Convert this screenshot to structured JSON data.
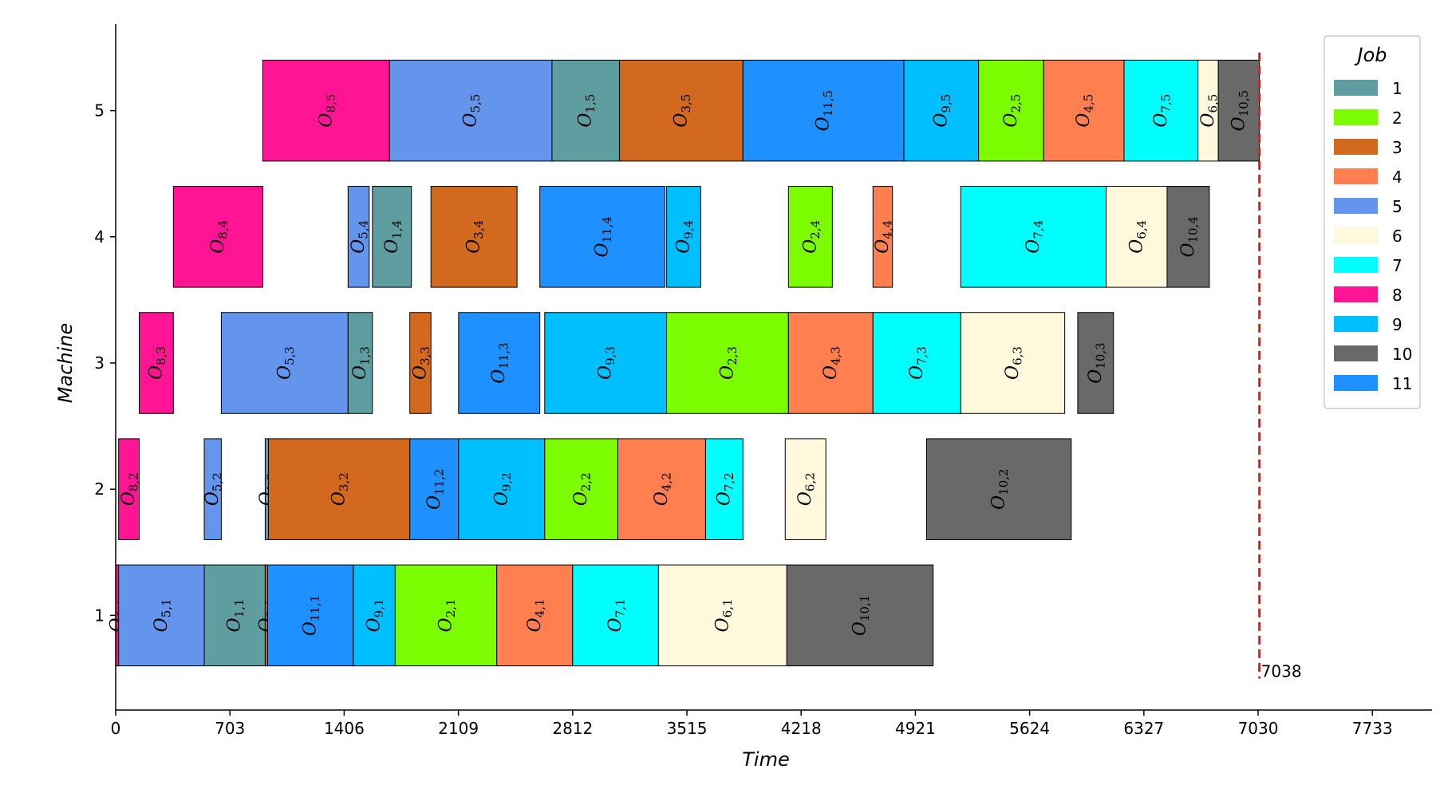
{
  "chart_data": {
    "type": "gantt",
    "xlabel": "Time",
    "ylabel": "Machine",
    "xticks": [
      0,
      703,
      1406,
      2109,
      2812,
      3515,
      4218,
      4921,
      5624,
      6327,
      7030,
      7733
    ],
    "xlim": [
      0,
      8100
    ],
    "yticks": [
      1,
      2,
      3,
      4,
      5
    ],
    "ylim": [
      0.25,
      5.75
    ],
    "makespan": 7038,
    "makespan_label": "7038",
    "makespan_color": "#e41a1a",
    "legend": {
      "title": "Job",
      "placement": "top-right",
      "jobs": [
        {
          "label": "1",
          "color": "#5f9ea0"
        },
        {
          "label": "2",
          "color": "#7cfc00"
        },
        {
          "label": "3",
          "color": "#d2691e"
        },
        {
          "label": "4",
          "color": "#ff7f50"
        },
        {
          "label": "5",
          "color": "#6495ed"
        },
        {
          "label": "6",
          "color": "#fff8dc"
        },
        {
          "label": "7",
          "color": "#00ffff"
        },
        {
          "label": "8",
          "color": "#ff1493"
        },
        {
          "label": "9",
          "color": "#00bfff"
        },
        {
          "label": "10",
          "color": "#696969"
        },
        {
          "label": "11",
          "color": "#1e90ff"
        }
      ]
    },
    "operations": [
      {
        "machine": 1,
        "job": 8,
        "start": 0,
        "end": 18
      },
      {
        "machine": 1,
        "job": 5,
        "start": 18,
        "end": 545
      },
      {
        "machine": 1,
        "job": 1,
        "start": 545,
        "end": 920
      },
      {
        "machine": 1,
        "job": 3,
        "start": 920,
        "end": 935
      },
      {
        "machine": 1,
        "job": 11,
        "start": 935,
        "end": 1462
      },
      {
        "machine": 1,
        "job": 9,
        "start": 1462,
        "end": 1720
      },
      {
        "machine": 1,
        "job": 2,
        "start": 1720,
        "end": 2345
      },
      {
        "machine": 1,
        "job": 4,
        "start": 2345,
        "end": 2812
      },
      {
        "machine": 1,
        "job": 7,
        "start": 2812,
        "end": 3340
      },
      {
        "machine": 1,
        "job": 6,
        "start": 3340,
        "end": 4130
      },
      {
        "machine": 1,
        "job": 10,
        "start": 4130,
        "end": 5030
      },
      {
        "machine": 2,
        "job": 8,
        "start": 18,
        "end": 145
      },
      {
        "machine": 2,
        "job": 5,
        "start": 545,
        "end": 650
      },
      {
        "machine": 2,
        "job": 1,
        "start": 920,
        "end": 940
      },
      {
        "machine": 2,
        "job": 3,
        "start": 940,
        "end": 1810
      },
      {
        "machine": 2,
        "job": 11,
        "start": 1810,
        "end": 2110
      },
      {
        "machine": 2,
        "job": 9,
        "start": 2110,
        "end": 2640
      },
      {
        "machine": 2,
        "job": 2,
        "start": 2640,
        "end": 3090
      },
      {
        "machine": 2,
        "job": 4,
        "start": 3090,
        "end": 3630
      },
      {
        "machine": 2,
        "job": 7,
        "start": 3630,
        "end": 3860
      },
      {
        "machine": 2,
        "job": 6,
        "start": 4120,
        "end": 4370
      },
      {
        "machine": 2,
        "job": 10,
        "start": 4990,
        "end": 5880
      },
      {
        "machine": 3,
        "job": 8,
        "start": 145,
        "end": 355
      },
      {
        "machine": 3,
        "job": 5,
        "start": 650,
        "end": 1430
      },
      {
        "machine": 3,
        "job": 1,
        "start": 1430,
        "end": 1580
      },
      {
        "machine": 3,
        "job": 3,
        "start": 1810,
        "end": 1940
      },
      {
        "machine": 3,
        "job": 11,
        "start": 2110,
        "end": 2610
      },
      {
        "machine": 3,
        "job": 9,
        "start": 2640,
        "end": 3390
      },
      {
        "machine": 3,
        "job": 2,
        "start": 3390,
        "end": 4140
      },
      {
        "machine": 3,
        "job": 4,
        "start": 4140,
        "end": 4660
      },
      {
        "machine": 3,
        "job": 7,
        "start": 4660,
        "end": 5200
      },
      {
        "machine": 3,
        "job": 6,
        "start": 5200,
        "end": 5840
      },
      {
        "machine": 3,
        "job": 10,
        "start": 5920,
        "end": 6140
      },
      {
        "machine": 4,
        "job": 8,
        "start": 355,
        "end": 905
      },
      {
        "machine": 4,
        "job": 5,
        "start": 1430,
        "end": 1560
      },
      {
        "machine": 4,
        "job": 1,
        "start": 1580,
        "end": 1820
      },
      {
        "machine": 4,
        "job": 3,
        "start": 1940,
        "end": 2470
      },
      {
        "machine": 4,
        "job": 11,
        "start": 2610,
        "end": 3380
      },
      {
        "machine": 4,
        "job": 9,
        "start": 3390,
        "end": 3600
      },
      {
        "machine": 4,
        "job": 2,
        "start": 4140,
        "end": 4410
      },
      {
        "machine": 4,
        "job": 4,
        "start": 4660,
        "end": 4780
      },
      {
        "machine": 4,
        "job": 7,
        "start": 5200,
        "end": 6095
      },
      {
        "machine": 4,
        "job": 6,
        "start": 6095,
        "end": 6470
      },
      {
        "machine": 4,
        "job": 10,
        "start": 6470,
        "end": 6730
      },
      {
        "machine": 5,
        "job": 8,
        "start": 905,
        "end": 1685
      },
      {
        "machine": 5,
        "job": 5,
        "start": 1685,
        "end": 2685
      },
      {
        "machine": 5,
        "job": 1,
        "start": 2685,
        "end": 3100
      },
      {
        "machine": 5,
        "job": 3,
        "start": 3100,
        "end": 3860
      },
      {
        "machine": 5,
        "job": 11,
        "start": 3860,
        "end": 4850
      },
      {
        "machine": 5,
        "job": 9,
        "start": 4850,
        "end": 5310
      },
      {
        "machine": 5,
        "job": 2,
        "start": 5310,
        "end": 5710
      },
      {
        "machine": 5,
        "job": 4,
        "start": 5710,
        "end": 6205
      },
      {
        "machine": 5,
        "job": 7,
        "start": 6205,
        "end": 6660
      },
      {
        "machine": 5,
        "job": 6,
        "start": 6660,
        "end": 6785
      },
      {
        "machine": 5,
        "job": 10,
        "start": 6785,
        "end": 7038
      }
    ]
  }
}
